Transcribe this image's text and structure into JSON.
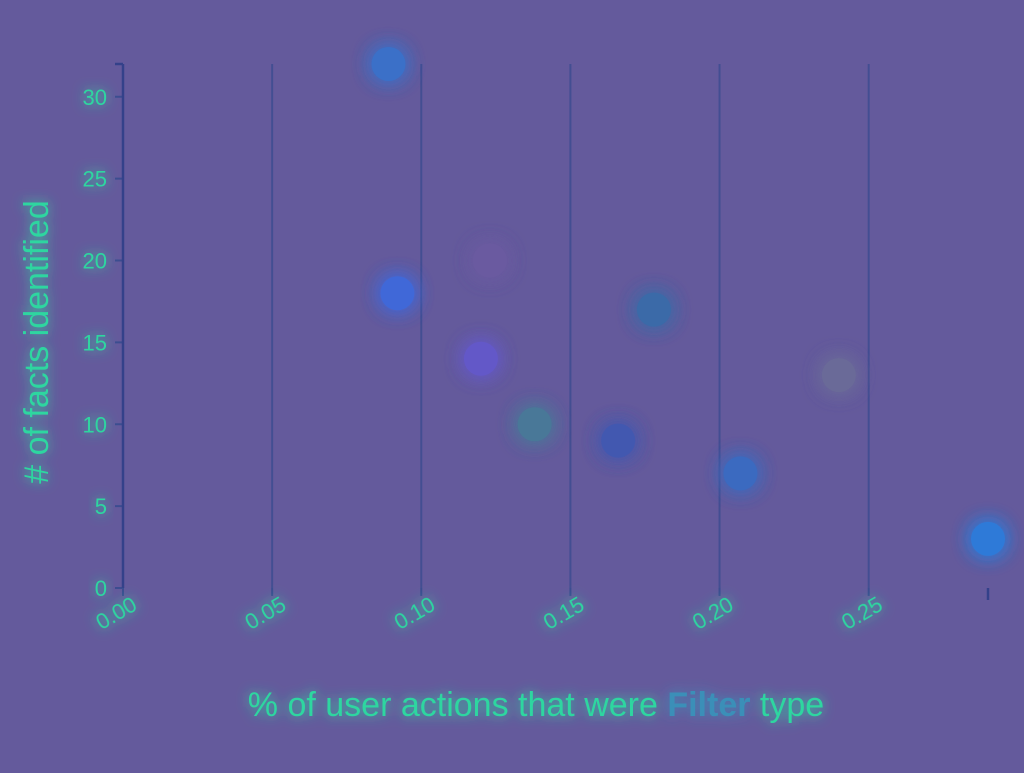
{
  "chart_data": {
    "type": "scatter",
    "title": "",
    "xlabel_parts": [
      {
        "text": "% of user actions that were ",
        "bold": false
      },
      {
        "text": "Filter",
        "bold": true
      },
      {
        "text": " type",
        "bold": false
      }
    ],
    "ylabel": "# of facts identified",
    "xlim": [
      0,
      0.29
    ],
    "ylim": [
      0,
      32
    ],
    "x_ticks": [
      "0.00",
      "0.05",
      "0.10",
      "0.15",
      "0.20",
      "0.25"
    ],
    "y_ticks": [
      "0",
      "5",
      "10",
      "15",
      "20",
      "25",
      "30"
    ],
    "grid": true,
    "points": [
      {
        "x": 0.089,
        "y": 32,
        "color": "#3a70c8"
      },
      {
        "x": 0.092,
        "y": 18,
        "color": "#3f68d8"
      },
      {
        "x": 0.123,
        "y": 20,
        "color": "#6a5aa0"
      },
      {
        "x": 0.12,
        "y": 14,
        "color": "#6458c8"
      },
      {
        "x": 0.138,
        "y": 10,
        "color": "#4a7898"
      },
      {
        "x": 0.166,
        "y": 9,
        "color": "#4258b0"
      },
      {
        "x": 0.178,
        "y": 17,
        "color": "#3a6aa8"
      },
      {
        "x": 0.207,
        "y": 7,
        "color": "#3a6ac0"
      },
      {
        "x": 0.24,
        "y": 13,
        "color": "#6a6a98"
      },
      {
        "x": 0.29,
        "y": 3,
        "color": "#2f7ad8"
      }
    ]
  }
}
